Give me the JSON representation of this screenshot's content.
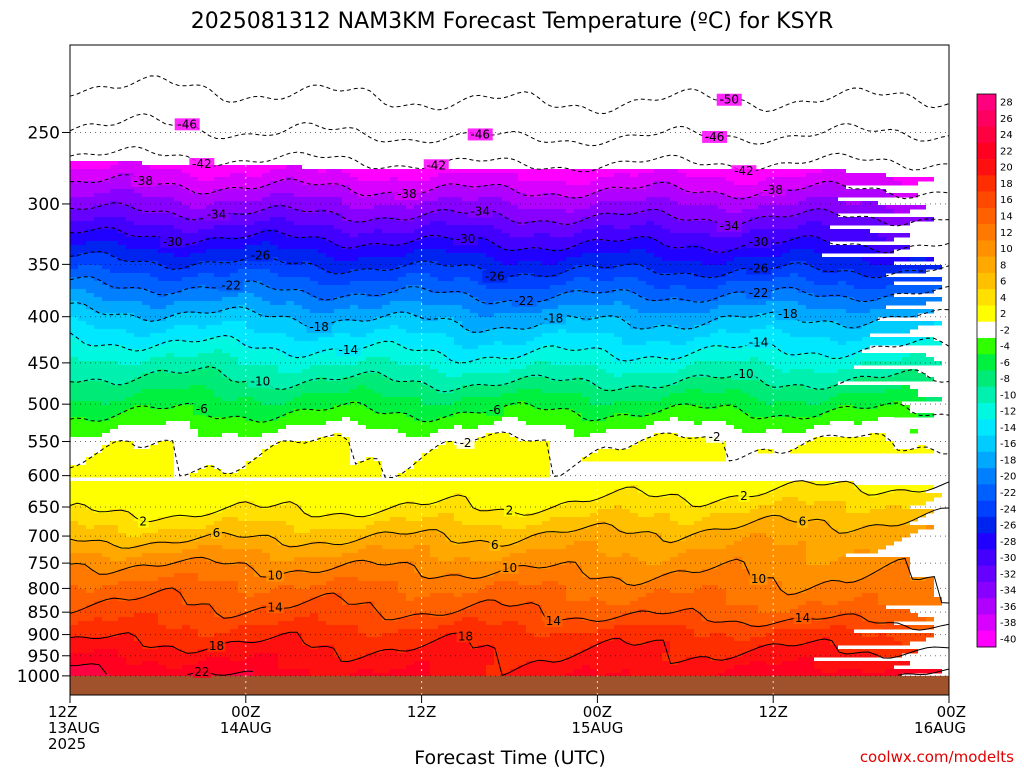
{
  "chart_data": {
    "type": "heatmap",
    "title": "2025081312 NAM3KM Forecast Temperature (ºC) for KSYR",
    "xlabel": "Forecast Time (UTC)",
    "ylabel": "",
    "credit": "coolwx.com/modelts",
    "y_scale": "log-pressure",
    "ylim": [
      1050,
      200
    ],
    "y_ticks": [
      250,
      300,
      350,
      400,
      450,
      500,
      550,
      600,
      650,
      700,
      750,
      800,
      850,
      900,
      950,
      1000
    ],
    "x_range_hours": [
      0,
      60
    ],
    "x_ticks": [
      {
        "hour": 0,
        "lines": [
          "12Z",
          "13AUG",
          "2025"
        ]
      },
      {
        "hour": 12,
        "lines": [
          "00Z",
          "14AUG"
        ]
      },
      {
        "hour": 24,
        "lines": [
          "12Z"
        ]
      },
      {
        "hour": 36,
        "lines": [
          "00Z",
          "15AUG"
        ]
      },
      {
        "hour": 48,
        "lines": [
          "12Z"
        ]
      },
      {
        "hour": 60,
        "lines": [
          "00Z",
          "16AUG"
        ]
      }
    ],
    "grid": true,
    "colorbar": {
      "placement": "right",
      "levels": [
        28,
        26,
        24,
        22,
        20,
        18,
        16,
        14,
        12,
        10,
        8,
        6,
        4,
        2,
        -2,
        -4,
        -6,
        -8,
        -10,
        -12,
        -14,
        -16,
        -18,
        -20,
        -22,
        -24,
        -26,
        -28,
        -30,
        -32,
        -34,
        -36,
        -38,
        -40
      ],
      "colors": [
        "#ff007f",
        "#ff0060",
        "#ff0040",
        "#ff0020",
        "#ff1010",
        "#ff2e00",
        "#ff4800",
        "#ff6000",
        "#ff7800",
        "#ff9000",
        "#ffa800",
        "#ffc000",
        "#ffe000",
        "#ffff00",
        "#ffffff",
        "#30ff00",
        "#00f040",
        "#00ea78",
        "#00f0b0",
        "#00f8e0",
        "#00e8ff",
        "#00ccff",
        "#00a8ff",
        "#0080ff",
        "#0060ff",
        "#0040ff",
        "#0024f0",
        "#2000ff",
        "#4400ff",
        "#6600ff",
        "#8800ff",
        "#b000ff",
        "#d800ff",
        "#ff00ff"
      ]
    },
    "profile_pressure_hpa": [
      1000,
      950,
      900,
      850,
      800,
      750,
      700,
      650,
      600,
      550,
      500,
      450,
      400,
      350,
      300,
      250,
      200
    ],
    "profile_temps_c": {
      "first_hour": [
        23,
        20,
        17,
        15,
        13,
        10,
        5,
        1,
        -1,
        -3,
        -7,
        -11,
        -17,
        -25,
        -35,
        -45,
        -54
      ],
      "second_day": [
        19,
        18,
        17,
        14,
        12,
        9,
        6,
        2,
        -1,
        -2,
        -7,
        -13,
        -19,
        -27,
        -36,
        -47,
        -56
      ],
      "last_hour": [
        22,
        19,
        16,
        12,
        10,
        9,
        8,
        5,
        1,
        -2,
        -7,
        -12,
        -18,
        -27,
        -36,
        -46,
        -56
      ]
    },
    "contours": [
      {
        "level": -50,
        "labels_at_hours": [
          45
        ]
      },
      {
        "level": -46,
        "labels_at_hours": [
          8,
          28,
          44
        ]
      },
      {
        "level": -42,
        "labels_at_hours": [
          9,
          25,
          46
        ]
      },
      {
        "level": -38,
        "labels_at_hours": [
          5,
          23,
          48
        ]
      },
      {
        "level": -34,
        "labels_at_hours": [
          10,
          28,
          45
        ]
      },
      {
        "level": -30,
        "labels_at_hours": [
          7,
          27,
          47
        ]
      },
      {
        "level": -26,
        "labels_at_hours": [
          13,
          29,
          47
        ]
      },
      {
        "level": -22,
        "labels_at_hours": [
          11,
          31,
          47
        ]
      },
      {
        "level": -18,
        "labels_at_hours": [
          17,
          33,
          49
        ]
      },
      {
        "level": -14,
        "labels_at_hours": [
          19,
          47
        ]
      },
      {
        "level": -10,
        "labels_at_hours": [
          13,
          46
        ]
      },
      {
        "level": -6,
        "labels_at_hours": [
          9,
          29
        ]
      },
      {
        "level": -2,
        "labels_at_hours": [
          27,
          44
        ]
      },
      {
        "level": 2,
        "labels_at_hours": [
          5,
          30,
          46
        ]
      },
      {
        "level": 6,
        "labels_at_hours": [
          10,
          29,
          50
        ]
      },
      {
        "level": 10,
        "labels_at_hours": [
          14,
          30,
          47
        ]
      },
      {
        "level": 14,
        "labels_at_hours": [
          14,
          33,
          50
        ]
      },
      {
        "level": 18,
        "labels_at_hours": [
          10,
          27
        ]
      },
      {
        "level": 22,
        "labels_at_hours": [
          9
        ]
      }
    ],
    "terrain_below_hpa": 1000,
    "terrain_color": "#a0522d"
  }
}
